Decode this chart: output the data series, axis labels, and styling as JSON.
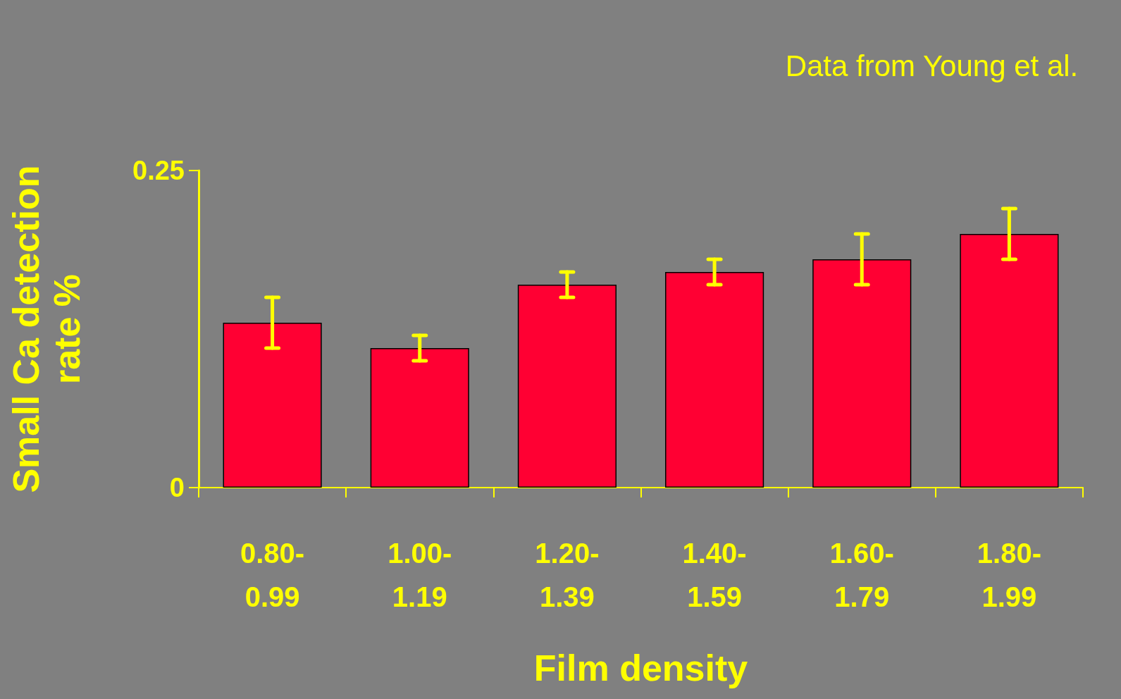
{
  "chart_data": {
    "type": "bar",
    "xlabel": "Film density",
    "ylabel": "Small Ca detection rate %",
    "annotations": [
      "Data from Young et al."
    ],
    "categories": [
      "0.80-0.99",
      "1.00-1.19",
      "1.20-1.39",
      "1.40-1.59",
      "1.60-1.79",
      "1.80-1.99"
    ],
    "values": [
      0.13,
      0.11,
      0.16,
      0.17,
      0.18,
      0.2
    ],
    "errors": [
      0.02,
      0.01,
      0.01,
      0.01,
      0.02,
      0.02
    ],
    "color": "#ff0033",
    "ylim": [
      0,
      0.25
    ],
    "yticks": [
      0,
      0.25
    ],
    "grid": false
  }
}
